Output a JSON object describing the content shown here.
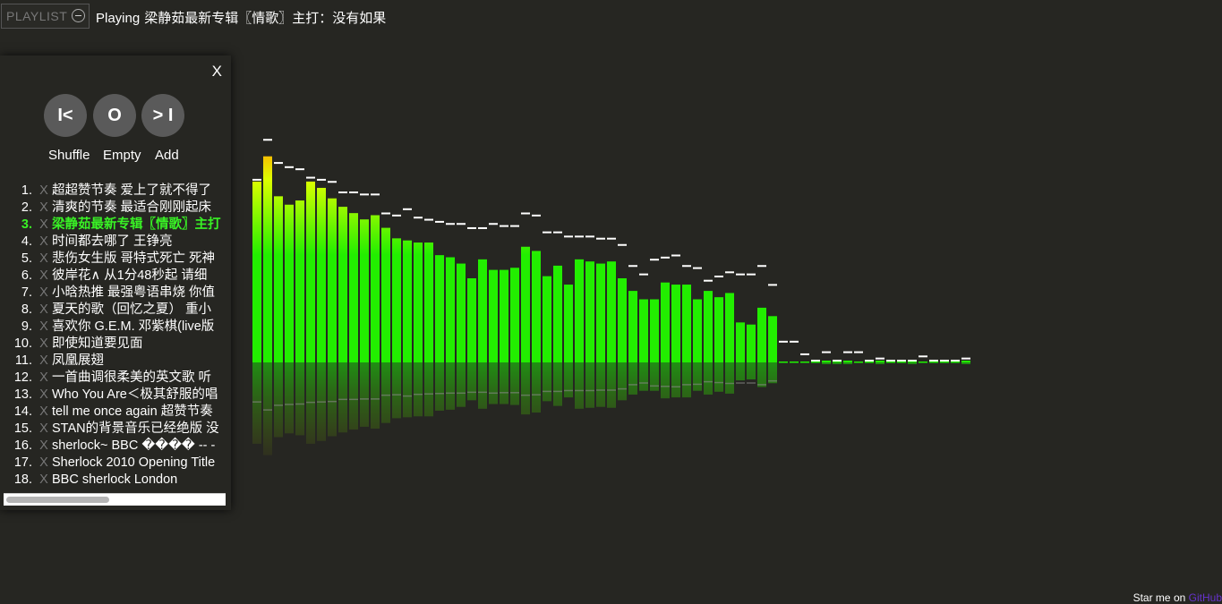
{
  "header": {
    "playlist_toggle_label": "PLAYLIST",
    "now_playing_prefix": "Playing",
    "now_playing_title": "梁静茹最新专辑〖情歌〗主打：没有如果"
  },
  "panel": {
    "close_label": "X",
    "controls": {
      "prev_label": "I<",
      "play_label": "O",
      "next_label": "> I"
    },
    "actions": {
      "shuffle_label": "Shuffle",
      "empty_label": "Empty",
      "add_label": "Add"
    },
    "delete_glyph": "X",
    "playing_index": 3,
    "tracks": [
      "超超赞节奏 爱上了就不得了",
      "清爽的节奏 最适合刚刚起床",
      "梁静茹最新专辑〖情歌〗主打",
      "时间都去哪了 王铮亮",
      "悲伤女生版 哥特式死亡 死神",
      "彼岸花∧ 从1分48秒起 请细",
      "小晗热推 最强粤语串烧 你值",
      "夏天的歌（回忆之夏） 重小",
      "喜欢你 G.E.M. 邓紫棋(live版",
      "即使知道要见面",
      "凤凰展翅",
      "一首曲调很柔美的英文歌 听",
      "Who You Are＜极其舒服的唱",
      "tell me once again 超赞节奏",
      "STAN的背景音乐已经绝版 没",
      "sherlock~ BBC ���� -- -",
      "Sherlock 2010 Opening Title",
      "BBC sherlock London"
    ]
  },
  "visualizer": {
    "bar_color_low": "#22ee00",
    "bar_color_mid": "#ddff00",
    "bar_color_high": "#ffaa00",
    "bars": [
      0.86,
      0.98,
      0.79,
      0.75,
      0.77,
      0.86,
      0.83,
      0.78,
      0.74,
      0.71,
      0.68,
      0.7,
      0.64,
      0.59,
      0.58,
      0.57,
      0.57,
      0.51,
      0.5,
      0.47,
      0.4,
      0.49,
      0.44,
      0.44,
      0.45,
      0.55,
      0.53,
      0.41,
      0.46,
      0.37,
      0.49,
      0.48,
      0.47,
      0.48,
      0.4,
      0.34,
      0.3,
      0.3,
      0.38,
      0.37,
      0.37,
      0.3,
      0.34,
      0.31,
      0.33,
      0.19,
      0.18,
      0.26,
      0.22,
      0.0,
      0.0,
      0.0,
      0.0,
      0.0,
      0.0,
      0.0,
      0.0,
      0.0,
      0.0,
      0.0,
      0.0,
      0.0,
      0.0,
      0.0,
      0.0,
      0.0,
      0.0
    ],
    "tiny_bars": [
      0,
      0,
      0,
      0,
      0,
      0,
      0,
      0,
      0,
      0,
      0,
      0,
      0,
      0,
      0,
      0,
      0,
      0,
      0,
      0,
      0,
      0,
      0,
      0,
      0,
      0,
      0,
      0,
      0,
      0,
      0,
      0,
      0,
      0,
      0,
      0,
      0,
      0,
      0,
      0,
      0,
      0,
      0,
      0,
      0,
      0,
      0,
      0,
      0,
      1,
      1,
      1,
      1,
      2,
      2,
      2,
      1,
      1,
      2,
      1,
      1,
      2,
      1,
      1,
      1,
      1,
      2
    ],
    "caps": [
      0.86,
      1.05,
      0.94,
      0.92,
      0.91,
      0.87,
      0.86,
      0.85,
      0.8,
      0.8,
      0.79,
      0.79,
      0.7,
      0.69,
      0.72,
      0.68,
      0.67,
      0.66,
      0.65,
      0.65,
      0.63,
      0.63,
      0.65,
      0.64,
      0.64,
      0.7,
      0.69,
      0.61,
      0.61,
      0.59,
      0.59,
      0.59,
      0.58,
      0.58,
      0.55,
      0.45,
      0.41,
      0.48,
      0.49,
      0.5,
      0.45,
      0.44,
      0.38,
      0.4,
      0.42,
      0.41,
      0.41,
      0.45,
      0.36,
      0.09,
      0.09,
      0.03,
      0.0,
      0.04,
      0.0,
      0.04,
      0.04,
      0.0,
      0.01,
      0.0,
      0.0,
      0.0,
      0.02,
      0.0,
      0.0,
      0.0,
      0.01
    ]
  },
  "footer": {
    "text": "Star me on",
    "link_label": "GitHub"
  }
}
